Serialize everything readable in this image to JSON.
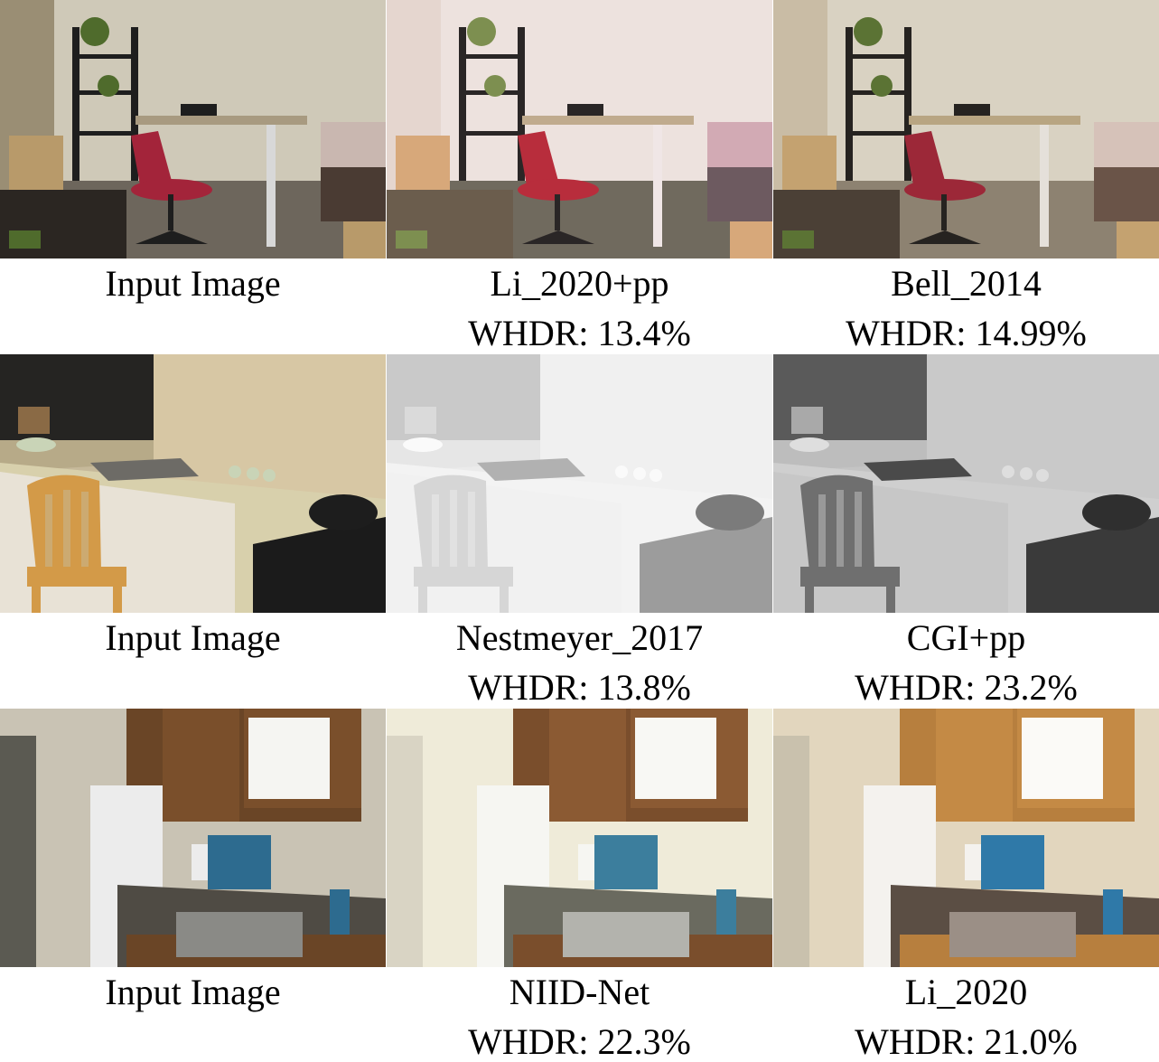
{
  "rows": [
    {
      "scene": "office",
      "cells": [
        {
          "method": "Input Image",
          "whdr": ""
        },
        {
          "method": "Li_2020+pp",
          "whdr": "WHDR: 13.4%"
        },
        {
          "method": "Bell_2014",
          "whdr": "WHDR: 14.99%"
        }
      ]
    },
    {
      "scene": "kitchen-corner",
      "cells": [
        {
          "method": "Input Image",
          "whdr": ""
        },
        {
          "method": "Nestmeyer_2017",
          "whdr": "WHDR: 13.8%"
        },
        {
          "method": "CGI+pp",
          "whdr": "WHDR: 23.2%"
        }
      ]
    },
    {
      "scene": "kitchen-fridge",
      "cells": [
        {
          "method": "Input Image",
          "whdr": ""
        },
        {
          "method": "NIID-Net",
          "whdr": "WHDR: 22.3%"
        },
        {
          "method": "Li_2020",
          "whdr": "WHDR: 21.0%"
        }
      ]
    }
  ]
}
